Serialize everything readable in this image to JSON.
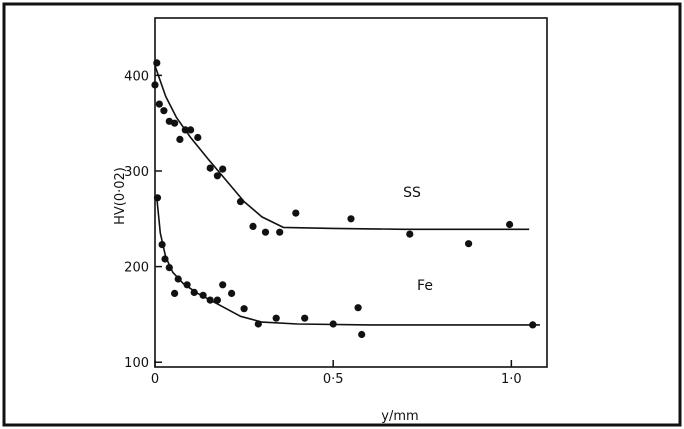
{
  "chart_data": {
    "type": "scatter",
    "xlabel": "y/mm",
    "ylabel": "HV(0·02)",
    "xlim": [
      0,
      1.1
    ],
    "ylim": [
      95,
      460
    ],
    "x_ticks": [
      0,
      0.5,
      1.0
    ],
    "x_tick_labels": [
      "0",
      "0·5",
      "1·0"
    ],
    "y_ticks": [
      100,
      200,
      300,
      400
    ],
    "y_tick_labels": [
      "100",
      "200",
      "300",
      "400"
    ],
    "grid": false,
    "colors": {
      "ink": "#111111",
      "background": "#ffffff"
    },
    "series": [
      {
        "name": "SS",
        "points": [
          [
            0.005,
            413
          ],
          [
            0.0,
            390
          ],
          [
            0.012,
            370
          ],
          [
            0.025,
            363
          ],
          [
            0.04,
            352
          ],
          [
            0.055,
            350
          ],
          [
            0.07,
            333
          ],
          [
            0.085,
            343
          ],
          [
            0.1,
            343
          ],
          [
            0.12,
            335
          ],
          [
            0.155,
            303
          ],
          [
            0.175,
            295
          ],
          [
            0.19,
            302
          ],
          [
            0.24,
            268
          ],
          [
            0.275,
            242
          ],
          [
            0.31,
            236
          ],
          [
            0.35,
            236
          ],
          [
            0.395,
            256
          ],
          [
            0.55,
            250
          ],
          [
            0.715,
            234
          ],
          [
            0.88,
            224
          ],
          [
            0.995,
            244
          ]
        ],
        "fit": [
          [
            0.0,
            410
          ],
          [
            0.03,
            378
          ],
          [
            0.06,
            356
          ],
          [
            0.1,
            335
          ],
          [
            0.15,
            312
          ],
          [
            0.2,
            290
          ],
          [
            0.25,
            268
          ],
          [
            0.3,
            252
          ],
          [
            0.36,
            241
          ],
          [
            0.5,
            240
          ],
          [
            0.7,
            239
          ],
          [
            0.9,
            239
          ],
          [
            1.05,
            239
          ]
        ]
      },
      {
        "name": "Fe",
        "points": [
          [
            0.007,
            272
          ],
          [
            0.02,
            223
          ],
          [
            0.028,
            208
          ],
          [
            0.04,
            199
          ],
          [
            0.055,
            172
          ],
          [
            0.065,
            187
          ],
          [
            0.09,
            181
          ],
          [
            0.11,
            173
          ],
          [
            0.135,
            170
          ],
          [
            0.155,
            165
          ],
          [
            0.175,
            165
          ],
          [
            0.19,
            181
          ],
          [
            0.215,
            172
          ],
          [
            0.25,
            156
          ],
          [
            0.29,
            140
          ],
          [
            0.34,
            146
          ],
          [
            0.42,
            146
          ],
          [
            0.5,
            140
          ],
          [
            0.57,
            157
          ],
          [
            0.58,
            129
          ],
          [
            1.06,
            139
          ]
        ],
        "fit": [
          [
            0.005,
            272
          ],
          [
            0.015,
            235
          ],
          [
            0.03,
            210
          ],
          [
            0.05,
            194
          ],
          [
            0.08,
            182
          ],
          [
            0.12,
            172
          ],
          [
            0.18,
            160
          ],
          [
            0.24,
            148
          ],
          [
            0.3,
            142
          ],
          [
            0.4,
            140
          ],
          [
            0.6,
            139
          ],
          [
            0.8,
            139
          ],
          [
            1.0,
            139
          ],
          [
            1.08,
            139
          ]
        ]
      }
    ]
  }
}
